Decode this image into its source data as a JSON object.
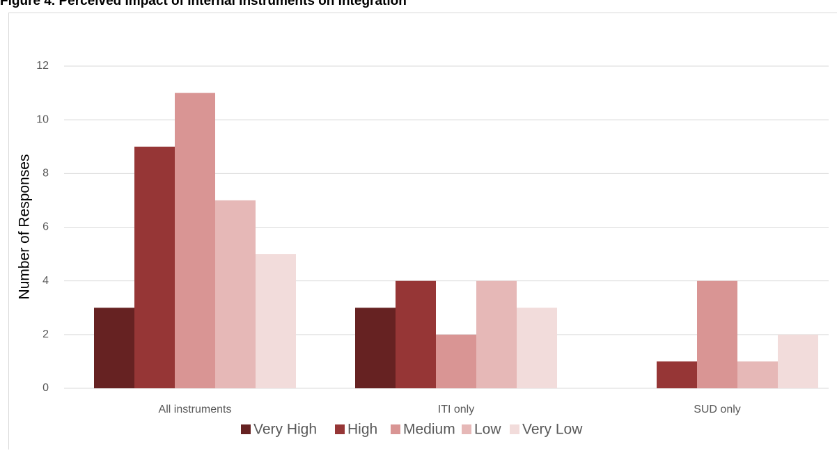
{
  "chart_data": {
    "type": "bar",
    "title": "Figure 4. Perceived Impact of Internal Instruments on Integration",
    "y_label": "Number of Responses",
    "categories": [
      "All instruments",
      "ITI only",
      "SUD only"
    ],
    "series": [
      {
        "name": "Very High",
        "color": "#662222",
        "values": [
          3,
          3,
          0
        ]
      },
      {
        "name": "High",
        "color": "#963636",
        "values": [
          9,
          4,
          1
        ]
      },
      {
        "name": "Medium",
        "color": "#d99594",
        "values": [
          11,
          2,
          4
        ]
      },
      {
        "name": "Low",
        "color": "#e6b8b7",
        "values": [
          7,
          4,
          1
        ]
      },
      {
        "name": "Very Low",
        "color": "#f2dcdb",
        "values": [
          5,
          3,
          2
        ]
      }
    ],
    "ylim": [
      0,
      12
    ],
    "yticks": [
      0,
      2,
      4,
      6,
      8,
      10,
      12
    ],
    "grid": true,
    "legend": "bottom"
  }
}
